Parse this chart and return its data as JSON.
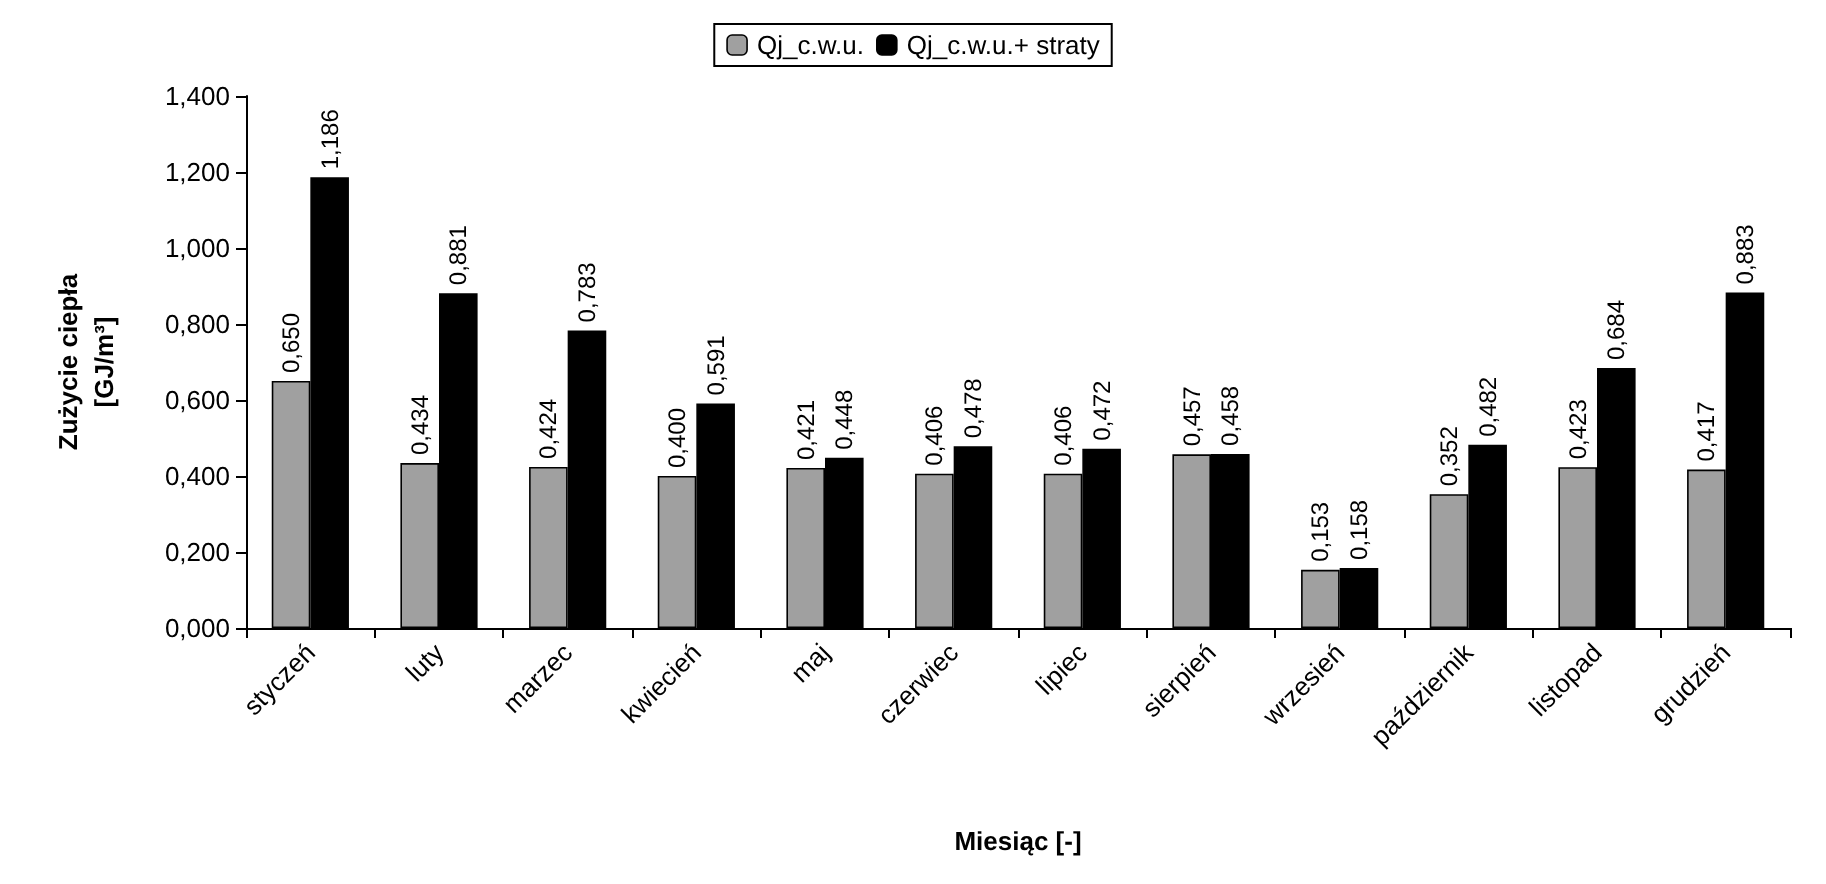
{
  "chart_data": {
    "type": "bar",
    "xlabel": "Miesiąc [-]",
    "ylabel": "Zużycie ciepła\n[GJ/m³]",
    "categories": [
      "styczeń",
      "luty",
      "marzec",
      "kwiecień",
      "maj",
      "czerwiec",
      "lipiec",
      "sierpień",
      "wrzesień",
      "październik",
      "listopad",
      "grudzień"
    ],
    "series": [
      {
        "name": "Qj_c.w.u.",
        "color": "#a0a0a0",
        "values": [
          0.65,
          0.434,
          0.424,
          0.4,
          0.421,
          0.406,
          0.406,
          0.457,
          0.153,
          0.352,
          0.423,
          0.417
        ],
        "value_labels": [
          "0,650",
          "0,434",
          "0,424",
          "0,400",
          "0,421",
          "0,406",
          "0,406",
          "0,457",
          "0,153",
          "0,352",
          "0,423",
          "0,417"
        ]
      },
      {
        "name": "Qj_c.w.u.+ straty",
        "color": "#000000",
        "values": [
          1.186,
          0.881,
          0.783,
          0.591,
          0.448,
          0.478,
          0.472,
          0.458,
          0.158,
          0.482,
          0.684,
          0.883
        ],
        "value_labels": [
          "1,186",
          "0,881",
          "0,783",
          "0,591",
          "0,448",
          "0,478",
          "0,472",
          "0,458",
          "0,158",
          "0,482",
          "0,684",
          "0,883"
        ]
      }
    ],
    "ylim": [
      0,
      1.4
    ],
    "yticks": [
      {
        "value": 0,
        "label": "0,000"
      },
      {
        "value": 0.2,
        "label": "0,200"
      },
      {
        "value": 0.4,
        "label": "0,400"
      },
      {
        "value": 0.6,
        "label": "0,600"
      },
      {
        "value": 0.8,
        "label": "0,800"
      },
      {
        "value": 1.0,
        "label": "1,000"
      },
      {
        "value": 1.2,
        "label": "1,200"
      },
      {
        "value": 1.4,
        "label": "1,400"
      }
    ],
    "grid": false,
    "legend": "top"
  }
}
